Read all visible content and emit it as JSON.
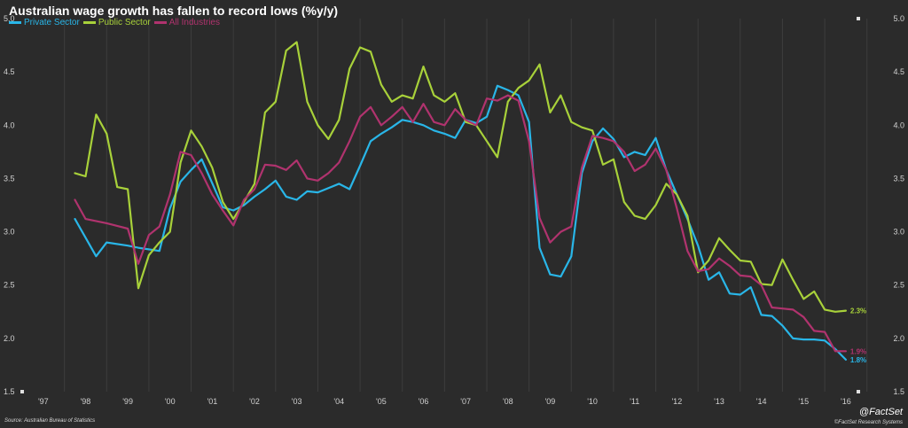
{
  "chart_data": {
    "type": "line",
    "title": "Australian wage growth has fallen to record lows (%y/y)",
    "ylim": [
      1.5,
      5.0
    ],
    "xlim": [
      1997.0,
      2017.3
    ],
    "y_ticks": [
      "1.5",
      "2.0",
      "2.5",
      "3.0",
      "3.5",
      "4.0",
      "4.5",
      "5.0"
    ],
    "x_ticks": [
      "'97",
      "'98",
      "'99",
      "'00",
      "'01",
      "'02",
      "'03",
      "'04",
      "'05",
      "'06",
      "'07",
      "'08",
      "'09",
      "'10",
      "'11",
      "'12",
      "'13",
      "'14",
      "'15",
      "'16"
    ],
    "grid": "vertical",
    "legend_position": "top-left",
    "series": [
      {
        "name": "Private Sector",
        "color": "#29b6e8",
        "end_label": "1.8%",
        "x": [
          1998.25,
          1998.75,
          1999.0,
          1999.5,
          1999.75,
          2000.25,
          2000.5,
          2000.75,
          2001.0,
          2001.25,
          2001.75,
          2002.0,
          2002.25,
          2002.5,
          2002.75,
          2003.0,
          2003.25,
          2003.5,
          2003.75,
          2004.0,
          2004.5,
          2004.75,
          2005.0,
          2005.25,
          2005.5,
          2005.75,
          2006.0,
          2006.25,
          2006.5,
          2006.75,
          2007.0,
          2007.25,
          2007.5,
          2007.75,
          2008.0,
          2008.25,
          2008.5,
          2008.75,
          2009.0,
          2009.25,
          2009.5,
          2009.75,
          2010.0,
          2010.25,
          2010.5,
          2010.75,
          2011.0,
          2011.25,
          2011.5,
          2011.75,
          2012.0,
          2012.25,
          2012.5,
          2012.75,
          2013.0,
          2013.25,
          2013.5,
          2013.75,
          2014.0,
          2014.25,
          2014.5,
          2014.75,
          2015.0,
          2015.25,
          2015.5,
          2015.75,
          2016.0,
          2016.25,
          2016.5
        ],
        "y": [
          3.12,
          2.77,
          2.9,
          2.87,
          2.85,
          2.82,
          3.22,
          3.47,
          3.58,
          3.68,
          3.23,
          3.2,
          3.25,
          3.33,
          3.4,
          3.48,
          3.33,
          3.3,
          3.38,
          3.37,
          3.45,
          3.4,
          3.62,
          3.85,
          3.92,
          3.98,
          4.05,
          4.03,
          4.0,
          3.95,
          3.92,
          3.88,
          4.05,
          4.02,
          4.08,
          4.37,
          4.33,
          4.28,
          4.03,
          2.85,
          2.6,
          2.58,
          2.77,
          3.55,
          3.85,
          3.97,
          3.87,
          3.7,
          3.75,
          3.72,
          3.88,
          3.58,
          3.35,
          3.12,
          2.87,
          2.55,
          2.62,
          2.42,
          2.41,
          2.48,
          2.22,
          2.21,
          2.12,
          2.0,
          1.99,
          1.99,
          1.98,
          1.9,
          1.8
        ]
      },
      {
        "name": "Public Sector",
        "color": "#a8d13a",
        "end_label": "2.3%",
        "x": [
          1998.25,
          1998.5,
          1998.75,
          1999.0,
          1999.25,
          1999.5,
          1999.75,
          2000.0,
          2000.25,
          2000.5,
          2000.75,
          2001.0,
          2001.25,
          2001.5,
          2001.75,
          2002.0,
          2002.25,
          2002.5,
          2002.75,
          2003.0,
          2003.25,
          2003.5,
          2003.75,
          2004.0,
          2004.25,
          2004.5,
          2004.75,
          2005.0,
          2005.25,
          2005.5,
          2005.75,
          2006.0,
          2006.25,
          2006.5,
          2006.75,
          2007.0,
          2007.25,
          2007.5,
          2007.75,
          2008.0,
          2008.25,
          2008.5,
          2008.75,
          2009.0,
          2009.25,
          2009.5,
          2009.75,
          2010.0,
          2010.25,
          2010.5,
          2010.75,
          2011.0,
          2011.25,
          2011.5,
          2011.75,
          2012.0,
          2012.25,
          2012.5,
          2012.75,
          2013.0,
          2013.25,
          2013.5,
          2013.75,
          2014.0,
          2014.25,
          2014.5,
          2014.75,
          2015.0,
          2015.25,
          2015.5,
          2015.75,
          2016.0,
          2016.25,
          2016.5
        ],
        "y": [
          3.55,
          3.52,
          4.1,
          3.92,
          3.42,
          3.4,
          2.47,
          2.78,
          2.9,
          3.0,
          3.65,
          3.95,
          3.8,
          3.6,
          3.28,
          3.12,
          3.28,
          3.45,
          4.12,
          4.22,
          4.7,
          4.78,
          4.22,
          4.0,
          3.87,
          4.05,
          4.53,
          4.73,
          4.69,
          4.38,
          4.22,
          4.28,
          4.25,
          4.55,
          4.28,
          4.22,
          4.3,
          4.03,
          4.0,
          3.85,
          3.7,
          4.22,
          4.35,
          4.42,
          4.57,
          4.12,
          4.28,
          4.03,
          3.98,
          3.95,
          3.63,
          3.68,
          3.28,
          3.15,
          3.12,
          3.25,
          3.45,
          3.35,
          3.15,
          2.62,
          2.73,
          2.94,
          2.83,
          2.73,
          2.72,
          2.51,
          2.5,
          2.74,
          2.55,
          2.37,
          2.44,
          2.27,
          2.25,
          2.26
        ]
      },
      {
        "name": "All Industries",
        "color": "#b0336e",
        "end_label": "1.9%",
        "x": [
          1998.25,
          1998.5,
          1999.0,
          1999.5,
          1999.75,
          2000.0,
          2000.25,
          2000.5,
          2000.75,
          2001.0,
          2001.25,
          2001.5,
          2001.75,
          2002.0,
          2002.25,
          2002.5,
          2002.75,
          2003.0,
          2003.25,
          2003.5,
          2003.75,
          2004.0,
          2004.25,
          2004.5,
          2004.75,
          2005.0,
          2005.25,
          2005.5,
          2005.75,
          2006.0,
          2006.25,
          2006.5,
          2006.75,
          2007.0,
          2007.25,
          2007.5,
          2007.75,
          2008.0,
          2008.25,
          2008.5,
          2008.75,
          2009.0,
          2009.25,
          2009.5,
          2009.75,
          2010.0,
          2010.25,
          2010.5,
          2010.75,
          2011.0,
          2011.25,
          2011.5,
          2011.75,
          2012.0,
          2012.25,
          2012.5,
          2012.75,
          2013.0,
          2013.25,
          2013.5,
          2013.75,
          2014.0,
          2014.25,
          2014.5,
          2014.75,
          2015.0,
          2015.25,
          2015.5,
          2015.75,
          2016.0,
          2016.25,
          2016.5
        ],
        "y": [
          3.3,
          3.12,
          3.08,
          3.03,
          2.7,
          2.97,
          3.05,
          3.35,
          3.75,
          3.72,
          3.55,
          3.35,
          3.2,
          3.06,
          3.3,
          3.4,
          3.63,
          3.62,
          3.58,
          3.67,
          3.5,
          3.48,
          3.55,
          3.65,
          3.85,
          4.08,
          4.17,
          4.0,
          4.08,
          4.17,
          4.03,
          4.2,
          4.03,
          4.0,
          4.15,
          4.05,
          4.0,
          4.25,
          4.23,
          4.28,
          4.23,
          3.85,
          3.13,
          2.9,
          3.0,
          3.05,
          3.6,
          3.9,
          3.88,
          3.85,
          3.75,
          3.57,
          3.63,
          3.78,
          3.58,
          3.22,
          2.82,
          2.63,
          2.65,
          2.75,
          2.68,
          2.59,
          2.58,
          2.5,
          2.29,
          2.28,
          2.27,
          2.2,
          2.07,
          2.06,
          1.88,
          1.88
        ]
      }
    ],
    "source": "Source: Australian Bureau of Statistics",
    "brand": "@FactSet",
    "copyright": "©FactSet Research Systems"
  }
}
